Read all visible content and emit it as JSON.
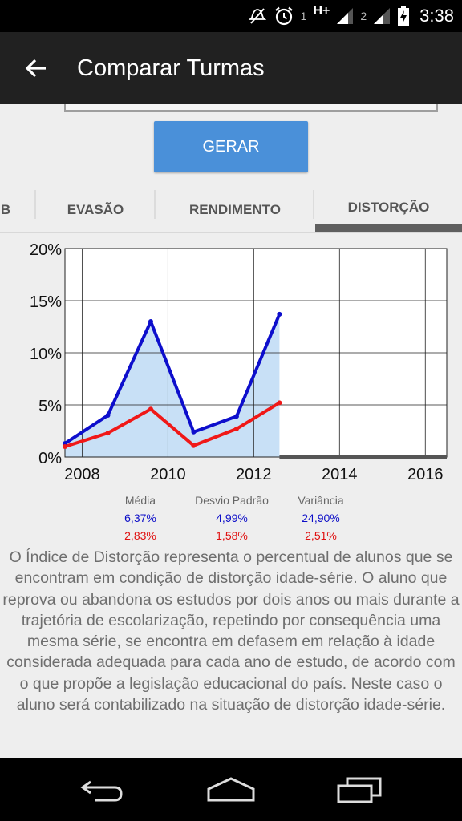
{
  "status_bar": {
    "time": "3:38",
    "network_type": "H+",
    "sim1": "1",
    "sim2": "2"
  },
  "app_bar": {
    "title": "Comparar Turmas"
  },
  "generate_button": {
    "label": "GERAR"
  },
  "tabs": [
    {
      "label": "B",
      "selected": false
    },
    {
      "label": "EVASÃO",
      "selected": false
    },
    {
      "label": "RENDIMENTO",
      "selected": false
    },
    {
      "label": "DISTORÇÃO",
      "selected": true
    }
  ],
  "chart_data": {
    "type": "line",
    "x_ticks": [
      "2008",
      "2010",
      "2012",
      "2014",
      "2016"
    ],
    "y_ticks": [
      "0%",
      "5%",
      "10%",
      "15%",
      "20%"
    ],
    "xlim": [
      2007.6,
      2016.5
    ],
    "ylim": [
      0,
      20
    ],
    "grid": true,
    "series": [
      {
        "color": "#0d0ecc",
        "fill": "#c8e0f6",
        "x": [
          2007.6,
          2008.6,
          2009.6,
          2010.6,
          2011.6,
          2012.6
        ],
        "y": [
          1.3,
          4.0,
          13.0,
          2.4,
          3.9,
          13.7
        ]
      },
      {
        "color": "#f01818",
        "x": [
          2007.6,
          2008.6,
          2009.6,
          2010.6,
          2011.6,
          2012.6
        ],
        "y": [
          1.0,
          2.3,
          4.6,
          1.1,
          2.7,
          5.2
        ]
      }
    ]
  },
  "stats": {
    "columns": [
      {
        "label": "Média",
        "value1": "6,37%",
        "value2": "2,83%"
      },
      {
        "label": "Desvio Padrão",
        "value1": "4,99%",
        "value2": "1,58%"
      },
      {
        "label": "Variância",
        "value1": "24,90%",
        "value2": "2,51%"
      }
    ]
  },
  "description": "O Índice de Distorção representa o percentual de alunos que se encontram em condição de distorção idade-série. O aluno que reprova ou abandona os estudos por dois anos ou mais durante a trajetória de escolarização, repetindo por consequência uma mesma série, se encontra em defasem em relação à idade considerada adequada para cada ano de estudo, de acordo com o que propõe a legislação educacional do país. Neste caso o aluno será contabilizado na situação de distorção idade-série.",
  "icons": {
    "status": [
      "mute-icon",
      "alarm-icon",
      "signal-icon",
      "battery-charging-icon"
    ],
    "app_bar": "arrow-back-icon",
    "nav": [
      "nav-back-icon",
      "nav-home-icon",
      "nav-recents-icon"
    ]
  }
}
